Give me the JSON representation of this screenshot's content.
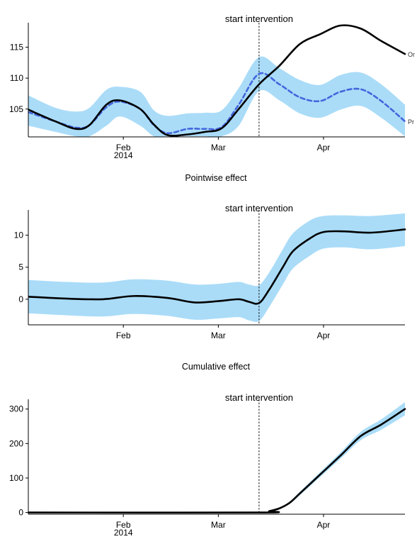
{
  "chart_data": [
    {
      "type": "line",
      "title": "",
      "xlabel": "",
      "ylabel": "",
      "x_ticks": [
        {
          "date": "2014-02-01",
          "label": "Feb",
          "sublabel": "2014"
        },
        {
          "date": "2014-03-01",
          "label": "Mar",
          "sublabel": ""
        },
        {
          "date": "2014-04-01",
          "label": "Apr",
          "sublabel": ""
        }
      ],
      "y_ticks": [
        105,
        110,
        115
      ],
      "xlim": [
        "2014-01-04",
        "2014-04-25"
      ],
      "ylim": [
        100.5,
        118.5
      ],
      "grid": false,
      "annotation": {
        "date": "2014-03-13",
        "text": "start intervention"
      },
      "series": [
        {
          "name": "",
          "legend_text": "Or",
          "style": "solid",
          "color": "#000000",
          "points": [
            [
              "2014-01-04",
              104.9
            ],
            [
              "2014-01-12",
              103.0
            ],
            [
              "2014-01-18",
              101.8
            ],
            [
              "2014-01-22",
              102.4
            ],
            [
              "2014-01-27",
              105.7
            ],
            [
              "2014-01-31",
              106.4
            ],
            [
              "2014-02-06",
              105.0
            ],
            [
              "2014-02-10",
              102.5
            ],
            [
              "2014-02-14",
              100.8
            ],
            [
              "2014-02-20",
              100.9
            ],
            [
              "2014-02-25",
              101.3
            ],
            [
              "2014-03-02",
              101.9
            ],
            [
              "2014-03-07",
              105.0
            ],
            [
              "2014-03-13",
              109.0
            ],
            [
              "2014-03-19",
              112.0
            ],
            [
              "2014-03-25",
              115.5
            ],
            [
              "2014-03-31",
              117.1
            ],
            [
              "2014-04-06",
              118.5
            ],
            [
              "2014-04-12",
              118.0
            ],
            [
              "2014-04-18",
              116.0
            ],
            [
              "2014-04-25",
              113.9
            ]
          ]
        },
        {
          "name": "",
          "legend_text": "Pr",
          "style": "dashed",
          "color": "#4466dd",
          "points": [
            [
              "2014-01-04",
              104.5
            ],
            [
              "2014-01-12",
              103.0
            ],
            [
              "2014-01-18",
              102.0
            ],
            [
              "2014-01-22",
              102.4
            ],
            [
              "2014-01-27",
              105.3
            ],
            [
              "2014-01-31",
              106.2
            ],
            [
              "2014-02-06",
              105.0
            ],
            [
              "2014-02-10",
              102.4
            ],
            [
              "2014-02-14",
              101.1
            ],
            [
              "2014-02-20",
              101.8
            ],
            [
              "2014-02-25",
              101.8
            ],
            [
              "2014-03-02",
              102.1
            ],
            [
              "2014-03-07",
              105.7
            ],
            [
              "2014-03-13",
              110.7
            ],
            [
              "2014-03-19",
              109.0
            ],
            [
              "2014-03-25",
              106.9
            ],
            [
              "2014-03-31",
              106.3
            ],
            [
              "2014-04-06",
              107.8
            ],
            [
              "2014-04-12",
              108.2
            ],
            [
              "2014-04-18",
              106.3
            ],
            [
              "2014-04-25",
              103.0
            ]
          ]
        }
      ],
      "band": {
        "color": "#aadcf8",
        "lower": [
          [
            "2014-01-04",
            102.3
          ],
          [
            "2014-01-12",
            101.3
          ],
          [
            "2014-01-18",
            100.6
          ],
          [
            "2014-01-22",
            100.6
          ],
          [
            "2014-01-27",
            102.3
          ],
          [
            "2014-01-31",
            103.8
          ],
          [
            "2014-02-06",
            102.3
          ],
          [
            "2014-02-10",
            100.6
          ],
          [
            "2014-02-14",
            100.6
          ],
          [
            "2014-02-20",
            100.6
          ],
          [
            "2014-02-25",
            100.6
          ],
          [
            "2014-03-02",
            100.6
          ],
          [
            "2014-03-07",
            102.3
          ],
          [
            "2014-03-13",
            107.9
          ],
          [
            "2014-03-19",
            106.4
          ],
          [
            "2014-03-25",
            104.3
          ],
          [
            "2014-03-31",
            103.6
          ],
          [
            "2014-04-06",
            104.9
          ],
          [
            "2014-04-12",
            105.5
          ],
          [
            "2014-04-18",
            103.6
          ],
          [
            "2014-04-25",
            100.6
          ]
        ],
        "upper": [
          [
            "2014-01-04",
            107.2
          ],
          [
            "2014-01-12",
            105.2
          ],
          [
            "2014-01-18",
            104.6
          ],
          [
            "2014-01-22",
            105.2
          ],
          [
            "2014-01-27",
            108.1
          ],
          [
            "2014-01-31",
            108.6
          ],
          [
            "2014-02-06",
            107.8
          ],
          [
            "2014-02-10",
            104.8
          ],
          [
            "2014-02-14",
            103.9
          ],
          [
            "2014-02-20",
            104.3
          ],
          [
            "2014-02-25",
            104.4
          ],
          [
            "2014-03-02",
            104.8
          ],
          [
            "2014-03-07",
            108.4
          ],
          [
            "2014-03-13",
            113.4
          ],
          [
            "2014-03-19",
            111.6
          ],
          [
            "2014-03-25",
            109.7
          ],
          [
            "2014-03-31",
            108.9
          ],
          [
            "2014-04-06",
            110.5
          ],
          [
            "2014-04-12",
            110.9
          ],
          [
            "2014-04-18",
            109.0
          ],
          [
            "2014-04-25",
            105.7
          ]
        ]
      }
    },
    {
      "type": "line",
      "title": "Pointwise effect",
      "xlabel": "",
      "ylabel": "",
      "x_ticks": [
        {
          "date": "2014-02-01",
          "label": "Feb",
          "sublabel": ""
        },
        {
          "date": "2014-03-01",
          "label": "Mar",
          "sublabel": ""
        },
        {
          "date": "2014-04-01",
          "label": "Apr",
          "sublabel": ""
        }
      ],
      "y_ticks": [
        0,
        5,
        10
      ],
      "xlim": [
        "2014-01-04",
        "2014-04-25"
      ],
      "ylim": [
        -4,
        13.5
      ],
      "grid": false,
      "annotation": {
        "date": "2014-03-13",
        "text": "start intervention"
      },
      "series": [
        {
          "name": "",
          "legend_text": "",
          "style": "solid",
          "color": "#000000",
          "points": [
            [
              "2014-01-04",
              0.4
            ],
            [
              "2014-01-15",
              0.1
            ],
            [
              "2014-01-26",
              0.0
            ],
            [
              "2014-02-04",
              0.5
            ],
            [
              "2014-02-14",
              0.2
            ],
            [
              "2014-02-22",
              -0.5
            ],
            [
              "2014-03-01",
              -0.3
            ],
            [
              "2014-03-07",
              0.0
            ],
            [
              "2014-03-10",
              -0.4
            ],
            [
              "2014-03-13",
              -0.6
            ],
            [
              "2014-03-16",
              1.5
            ],
            [
              "2014-03-20",
              5.0
            ],
            [
              "2014-03-23",
              7.5
            ],
            [
              "2014-03-28",
              9.5
            ],
            [
              "2014-04-01",
              10.5
            ],
            [
              "2014-04-07",
              10.6
            ],
            [
              "2014-04-15",
              10.4
            ],
            [
              "2014-04-25",
              10.9
            ]
          ]
        }
      ],
      "band": {
        "color": "#aadcf8",
        "lower": [
          [
            "2014-01-04",
            -2.2
          ],
          [
            "2014-01-15",
            -2.5
          ],
          [
            "2014-01-26",
            -2.7
          ],
          [
            "2014-02-04",
            -2.3
          ],
          [
            "2014-02-14",
            -2.6
          ],
          [
            "2014-02-22",
            -3.2
          ],
          [
            "2014-03-01",
            -3.0
          ],
          [
            "2014-03-07",
            -2.8
          ],
          [
            "2014-03-10",
            -3.3
          ],
          [
            "2014-03-13",
            -3.4
          ],
          [
            "2014-03-16",
            -1.2
          ],
          [
            "2014-03-20",
            2.3
          ],
          [
            "2014-03-23",
            4.8
          ],
          [
            "2014-03-28",
            6.8
          ],
          [
            "2014-04-01",
            7.9
          ],
          [
            "2014-04-07",
            8.1
          ],
          [
            "2014-04-15",
            7.8
          ],
          [
            "2014-04-25",
            8.3
          ]
        ],
        "upper": [
          [
            "2014-01-04",
            3.0
          ],
          [
            "2014-01-15",
            2.7
          ],
          [
            "2014-01-26",
            2.6
          ],
          [
            "2014-02-04",
            3.1
          ],
          [
            "2014-02-14",
            2.9
          ],
          [
            "2014-02-22",
            2.3
          ],
          [
            "2014-03-01",
            2.4
          ],
          [
            "2014-03-07",
            2.7
          ],
          [
            "2014-03-10",
            2.3
          ],
          [
            "2014-03-13",
            2.2
          ],
          [
            "2014-03-16",
            4.2
          ],
          [
            "2014-03-20",
            7.8
          ],
          [
            "2014-03-23",
            10.3
          ],
          [
            "2014-03-28",
            12.3
          ],
          [
            "2014-04-01",
            13.0
          ],
          [
            "2014-04-07",
            13.1
          ],
          [
            "2014-04-15",
            13.0
          ],
          [
            "2014-04-25",
            13.4
          ]
        ]
      }
    },
    {
      "type": "line",
      "title": "Cumulative effect",
      "xlabel": "",
      "ylabel": "",
      "x_ticks": [
        {
          "date": "2014-02-01",
          "label": "Feb",
          "sublabel": "2014"
        },
        {
          "date": "2014-03-01",
          "label": "Mar",
          "sublabel": ""
        },
        {
          "date": "2014-04-01",
          "label": "Apr",
          "sublabel": ""
        }
      ],
      "y_ticks": [
        0,
        100,
        200,
        300
      ],
      "xlim": [
        "2014-01-04",
        "2014-04-25"
      ],
      "ylim": [
        -5,
        320
      ],
      "grid": false,
      "annotation": {
        "date": "2014-03-13",
        "text": "start intervention"
      },
      "series": [
        {
          "name": "",
          "legend_text": "",
          "style": "solid",
          "color": "#000000",
          "points": [
            [
              "2014-01-04",
              0
            ],
            [
              "2014-03-13",
              0
            ],
            [
              "2014-03-16",
              4
            ],
            [
              "2014-03-19",
              12
            ],
            [
              "2014-03-22",
              28
            ],
            [
              "2014-03-25",
              55
            ],
            [
              "2014-03-31",
              110
            ],
            [
              "2014-04-06",
              165
            ],
            [
              "2014-04-12",
              222
            ],
            [
              "2014-04-18",
              255
            ],
            [
              "2014-04-25",
              300
            ]
          ]
        }
      ],
      "band": {
        "color": "#aadcf8",
        "lower": [
          [
            "2014-01-04",
            -1
          ],
          [
            "2014-03-13",
            -1
          ],
          [
            "2014-03-16",
            3
          ],
          [
            "2014-03-19",
            10
          ],
          [
            "2014-03-22",
            25
          ],
          [
            "2014-03-25",
            50
          ],
          [
            "2014-03-31",
            103
          ],
          [
            "2014-04-06",
            156
          ],
          [
            "2014-04-12",
            210
          ],
          [
            "2014-04-18",
            240
          ],
          [
            "2014-04-25",
            282
          ]
        ],
        "upper": [
          [
            "2014-01-04",
            1
          ],
          [
            "2014-03-13",
            1
          ],
          [
            "2014-03-16",
            5
          ],
          [
            "2014-03-19",
            14
          ],
          [
            "2014-03-22",
            31
          ],
          [
            "2014-03-25",
            60
          ],
          [
            "2014-03-31",
            117
          ],
          [
            "2014-04-06",
            174
          ],
          [
            "2014-04-12",
            234
          ],
          [
            "2014-04-18",
            270
          ],
          [
            "2014-04-25",
            320
          ]
        ]
      }
    }
  ]
}
